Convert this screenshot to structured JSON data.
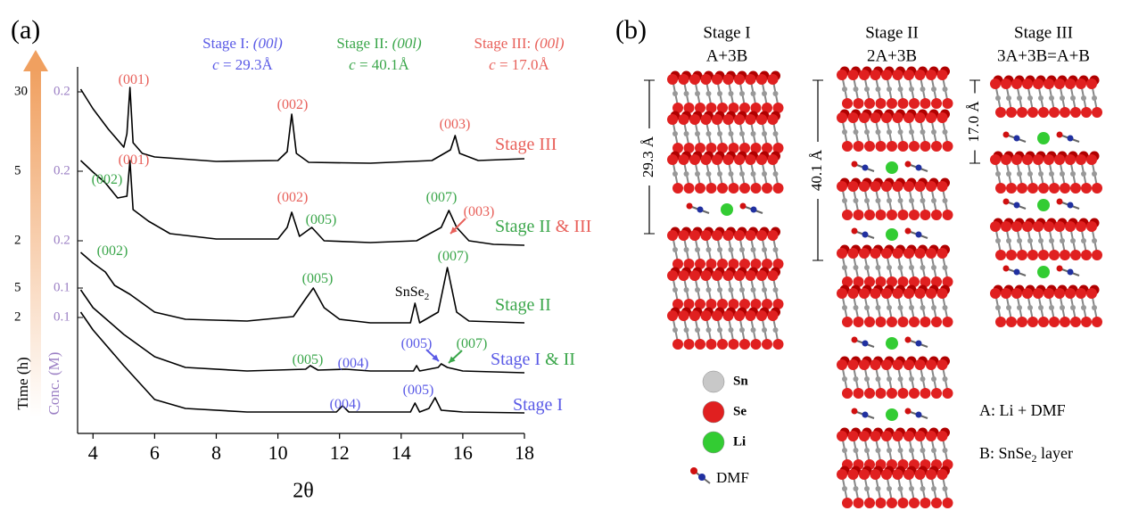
{
  "chart_data": {
    "type": "line",
    "panel_label": "(a)",
    "x_label": "2θ",
    "time_label": "Time (h)",
    "conc_label": "Conc. (M)",
    "xlim": [
      3.5,
      18
    ],
    "xticks": [
      4,
      6,
      8,
      10,
      12,
      14,
      16,
      18
    ],
    "ylim": [
      0,
      430
    ],
    "headers": [
      {
        "label": "Stage I: ",
        "miller": "(00l)",
        "c_symbol": "c",
        "c_value": " = 29.3Å",
        "color": "#5a5ae6"
      },
      {
        "label": "Stage II: ",
        "miller": "(00l)",
        "c_symbol": "c",
        "c_value": " = 40.1Å",
        "color": "#3aa64a"
      },
      {
        "label": "Stage III: ",
        "miller": "(00l)",
        "c_symbol": "c",
        "c_value": " = 17.0Å",
        "color": "#e8605a"
      }
    ],
    "series": [
      {
        "name_parts": [
          {
            "text": "Stage III",
            "color": "#e8605a"
          }
        ],
        "time": 30,
        "conc": 0.2,
        "color": "#000000",
        "x": [
          3.6,
          4.0,
          4.5,
          5.0,
          5.1,
          5.2,
          5.3,
          5.6,
          6,
          8,
          10,
          10.3,
          10.45,
          10.6,
          11,
          13,
          15,
          15.6,
          15.75,
          15.9,
          16.5,
          18
        ],
        "values": [
          386,
          364,
          341,
          321,
          336,
          388,
          326,
          314,
          310,
          305,
          306,
          316,
          358,
          314,
          304,
          303,
          306,
          318,
          334,
          314,
          306,
          308
        ]
      },
      {
        "name_parts": [
          {
            "text": "Stage II ",
            "color": "#3aa64a"
          },
          {
            "text": "& III",
            "color": "#e8605a"
          }
        ],
        "time": 5,
        "conc": 0.2,
        "color": "#000000",
        "x": [
          3.6,
          4.0,
          4.4,
          4.8,
          5.1,
          5.2,
          5.3,
          5.8,
          6.5,
          8,
          10,
          10.3,
          10.45,
          10.7,
          11.1,
          11.5,
          13,
          14.5,
          15.3,
          15.55,
          15.8,
          16.2,
          17,
          18
        ],
        "values": [
          306,
          293,
          281,
          264,
          266,
          306,
          251,
          238,
          224,
          218,
          218,
          231,
          248,
          221,
          231,
          216,
          214,
          216,
          231,
          250,
          231,
          216,
          212,
          211
        ]
      },
      {
        "name_parts": [
          {
            "text": "Stage II",
            "color": "#3aa64a"
          }
        ],
        "time": 2,
        "conc": 0.2,
        "color": "#000000",
        "x": [
          3.6,
          4.0,
          4.4,
          4.7,
          5.2,
          6,
          7,
          9,
          10.5,
          10.9,
          11.15,
          11.5,
          12,
          13,
          14.3,
          14.45,
          14.6,
          15.2,
          15.5,
          15.8,
          16.2,
          18
        ],
        "values": [
          203,
          191,
          181,
          166,
          156,
          136,
          128,
          126,
          131,
          151,
          163,
          141,
          128,
          124,
          124,
          146,
          124,
          136,
          186,
          136,
          126,
          124
        ]
      },
      {
        "name_parts": [
          {
            "text": "Stage I ",
            "color": "#5a5ae6"
          },
          {
            "text": "& II",
            "color": "#3aa64a"
          }
        ],
        "time": 5,
        "conc": 0.1,
        "color": "#000000",
        "x": [
          3.6,
          4,
          5,
          6,
          7,
          9,
          10.9,
          11.05,
          11.3,
          12.2,
          13,
          14.4,
          14.5,
          14.6,
          15.2,
          15.3,
          15.5,
          16,
          18
        ],
        "values": [
          161,
          141,
          111,
          86,
          74,
          70,
          72,
          76,
          71,
          72,
          70,
          70,
          76,
          70,
          74,
          78,
          74,
          70,
          68
        ]
      },
      {
        "name_parts": [
          {
            "text": "Stage I",
            "color": "#5a5ae6"
          }
        ],
        "time": 2,
        "conc": 0.1,
        "color": "#000000",
        "x": [
          3.6,
          4,
          5,
          6,
          7,
          9,
          11.9,
          12.1,
          12.3,
          14.3,
          14.45,
          14.6,
          14.9,
          15.1,
          15.3,
          16,
          18
        ],
        "values": [
          136,
          116,
          76,
          38,
          28,
          24,
          24,
          31,
          24,
          24,
          34,
          24,
          28,
          40,
          26,
          24,
          23
        ]
      }
    ],
    "annotations": [
      {
        "text": "(001)",
        "color": "#e8605a"
      },
      {
        "text": "(002)",
        "color": "#e8605a"
      },
      {
        "text": "(003)",
        "color": "#e8605a"
      },
      {
        "text": "(001)",
        "color": "#e8605a"
      },
      {
        "text": "(002)",
        "color": "#3aa64a"
      },
      {
        "text": "(002)",
        "color": "#e8605a"
      },
      {
        "text": "(005)",
        "color": "#3aa64a"
      },
      {
        "text": "(007)",
        "color": "#3aa64a"
      },
      {
        "text": "(003)",
        "color": "#e8605a"
      },
      {
        "text": "(002)",
        "color": "#3aa64a"
      },
      {
        "text": "(005)",
        "color": "#3aa64a"
      },
      {
        "text": "(007)",
        "color": "#3aa64a"
      },
      {
        "text": "SnSe",
        "sub": "2",
        "color": "#000000"
      },
      {
        "text": "(005)",
        "color": "#3aa64a"
      },
      {
        "text": "(004)",
        "color": "#5a5ae6"
      },
      {
        "text": "(005)",
        "color": "#5a5ae6"
      },
      {
        "text": "(007)",
        "color": "#3aa64a"
      },
      {
        "text": "(004)",
        "color": "#5a5ae6"
      },
      {
        "text": "(005)",
        "color": "#5a5ae6"
      }
    ]
  },
  "panel_b": {
    "label": "(b)",
    "columns": [
      {
        "title": "Stage I",
        "formula": "A+3B",
        "spacing": "29.3 Å"
      },
      {
        "title": "Stage II",
        "formula": "2A+3B",
        "spacing": "40.1 Å"
      },
      {
        "title": "Stage III",
        "formula": "3A+3B=A+B",
        "spacing": "17.0 Å"
      }
    ],
    "legend": [
      "Sn",
      "Se",
      "Li",
      "DMF"
    ],
    "note_a": "A: Li + DMF",
    "note_b": {
      "pre": "B: SnSe",
      "sub": "2",
      "post": " layer"
    }
  }
}
